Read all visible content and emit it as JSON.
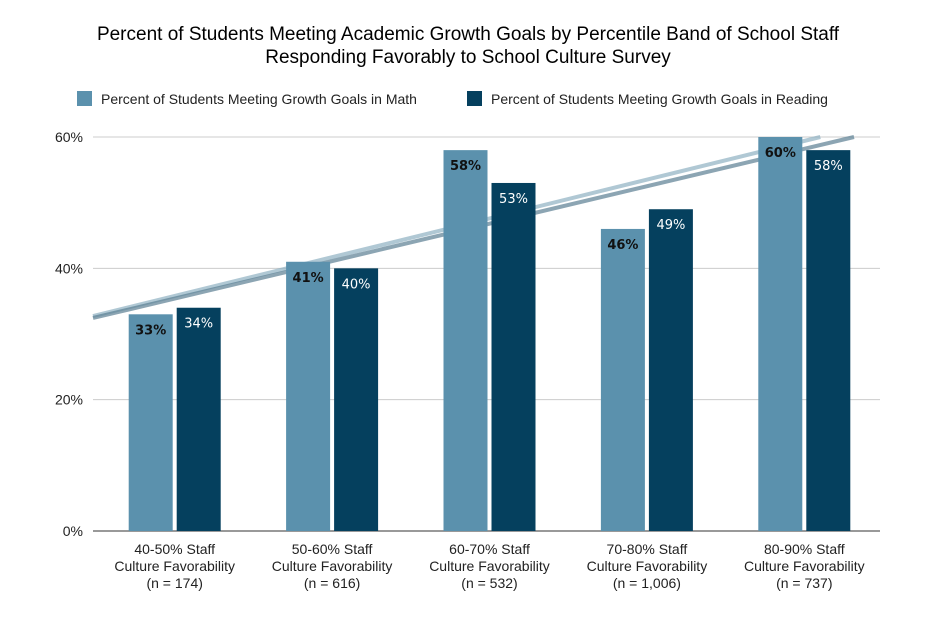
{
  "chart_data": {
    "type": "bar",
    "title": "Percent of Students Meeting Academic Growth Goals by Percentile Band of School Staff Responding Favorably to School Culture Survey",
    "title_lines": [
      "Percent of Students Meeting Academic Growth Goals by Percentile Band of School Staff",
      "Responding Favorably to School Culture Survey"
    ],
    "xlabel": "",
    "ylabel": "",
    "ylim": [
      0,
      60
    ],
    "yticks": [
      0,
      20,
      40,
      60
    ],
    "ytick_labels": [
      "0%",
      "20%",
      "40%",
      "60%"
    ],
    "grid": true,
    "legend_position": "top",
    "categories": [
      "40-50% Staff Culture Favorability (n = 174)",
      "50-60% Staff Culture Favorability (n = 616)",
      "60-70% Staff Culture Favorability (n = 532)",
      "70-80% Staff Culture Favorability (n = 1,006)",
      "80-90% Staff Culture Favorability (n = 737)"
    ],
    "category_lines": [
      [
        "40-50% Staff",
        "Culture Favorability",
        "(n = 174)"
      ],
      [
        "50-60% Staff",
        "Culture Favorability",
        "(n = 616)"
      ],
      [
        "60-70% Staff",
        "Culture Favorability",
        "(n = 532)"
      ],
      [
        "70-80% Staff",
        "Culture Favorability",
        "(n = 1,006)"
      ],
      [
        "80-90% Staff",
        "Culture Favorability",
        "(n = 737)"
      ]
    ],
    "series": [
      {
        "name": "Percent of Students Meeting Growth Goals in Math",
        "values": [
          33,
          41,
          58,
          46,
          60
        ],
        "labels": [
          "33%",
          "41%",
          "58%",
          "46%",
          "60%"
        ],
        "color": "#5b91ad",
        "label_color": "#111111",
        "trendline_color": "#8fb0c2"
      },
      {
        "name": "Percent of Students Meeting Growth Goals in Reading",
        "values": [
          34,
          40,
          53,
          49,
          58
        ],
        "labels": [
          "34%",
          "40%",
          "53%",
          "49%",
          "58%"
        ],
        "color": "#05405e",
        "label_color": "#ffffff",
        "trendline_color": "#5b7f93"
      }
    ],
    "trendlines": true
  }
}
